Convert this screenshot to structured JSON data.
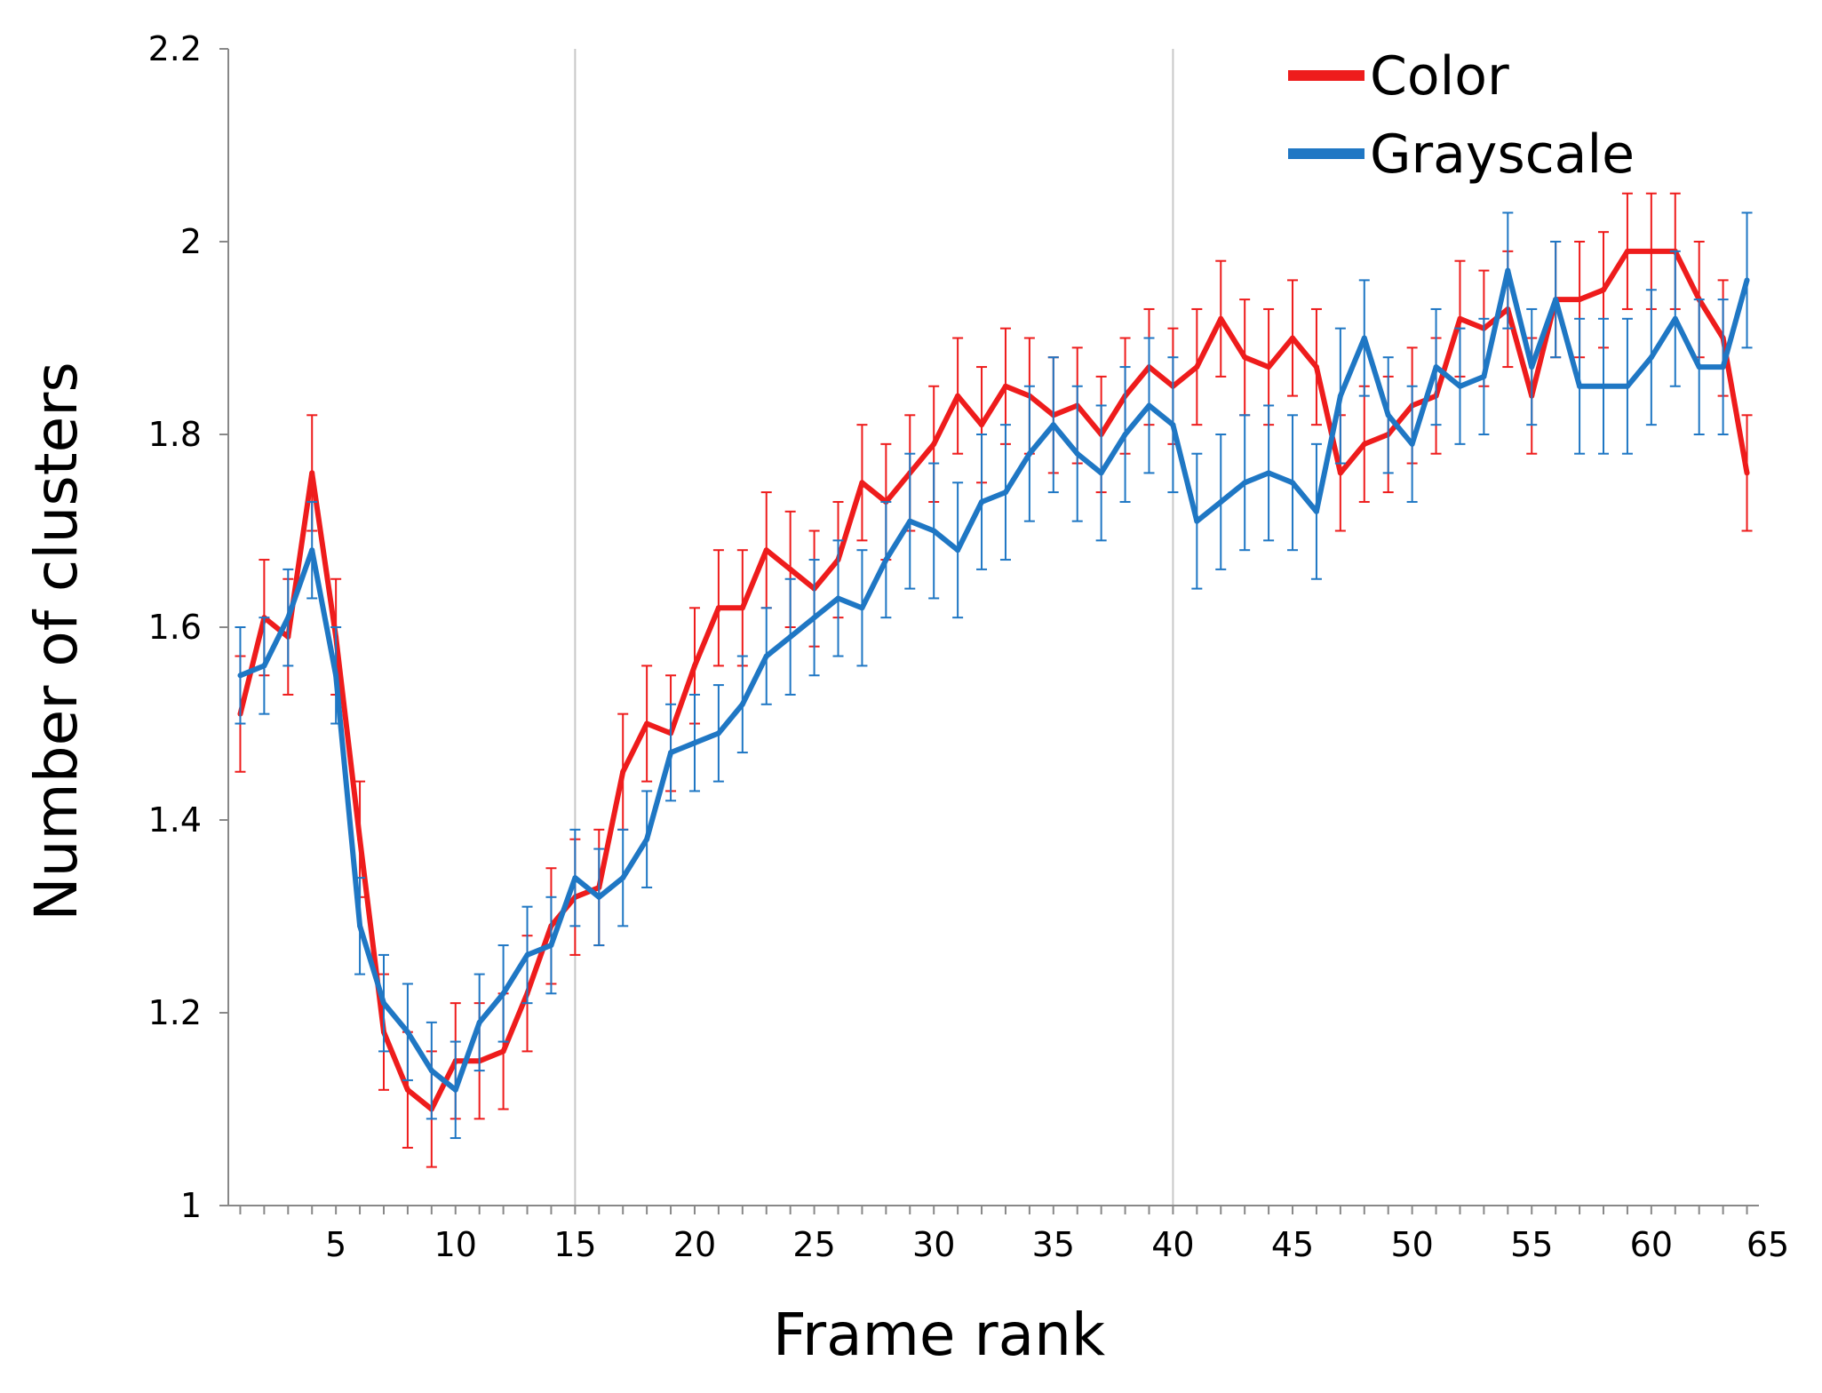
{
  "chart_data": {
    "type": "line",
    "xlabel": "Frame rank",
    "ylabel": "Number of clusters",
    "xlim": [
      0.5,
      64.5
    ],
    "ylim": [
      1,
      2.2
    ],
    "x_ticks": [
      5,
      10,
      15,
      20,
      25,
      30,
      35,
      40,
      45,
      50,
      55,
      60,
      65
    ],
    "y_ticks": [
      1,
      1.2,
      1.4,
      1.6,
      1.8,
      2,
      2.2
    ],
    "y_tick_labels": [
      "1",
      "1.2",
      "1.4",
      "1.6",
      "1.8",
      "2",
      "2.2"
    ],
    "reference_lines_x": [
      15,
      40
    ],
    "grid": false,
    "legend_position": "top-right",
    "error_bars": true,
    "x": [
      1,
      2,
      3,
      4,
      5,
      6,
      7,
      8,
      9,
      10,
      11,
      12,
      13,
      14,
      15,
      16,
      17,
      18,
      19,
      20,
      21,
      22,
      23,
      24,
      25,
      26,
      27,
      28,
      29,
      30,
      31,
      32,
      33,
      34,
      35,
      36,
      37,
      38,
      39,
      40,
      41,
      42,
      43,
      44,
      45,
      46,
      47,
      48,
      49,
      50,
      51,
      52,
      53,
      54,
      55,
      56,
      57,
      58,
      59,
      60,
      61,
      62,
      63,
      64
    ],
    "series": [
      {
        "name": "Color",
        "color": "#ee1c1c",
        "values": [
          1.51,
          1.61,
          1.59,
          1.76,
          1.59,
          1.38,
          1.18,
          1.12,
          1.1,
          1.15,
          1.15,
          1.16,
          1.22,
          1.29,
          1.32,
          1.33,
          1.45,
          1.5,
          1.49,
          1.56,
          1.62,
          1.62,
          1.68,
          1.66,
          1.64,
          1.67,
          1.75,
          1.73,
          1.76,
          1.79,
          1.84,
          1.81,
          1.85,
          1.84,
          1.82,
          1.83,
          1.8,
          1.84,
          1.87,
          1.85,
          1.87,
          1.92,
          1.88,
          1.87,
          1.9,
          1.87,
          1.76,
          1.79,
          1.8,
          1.83,
          1.84,
          1.92,
          1.91,
          1.93,
          1.84,
          1.94,
          1.94,
          1.95,
          1.99,
          1.99,
          1.99,
          1.94,
          1.9,
          1.76
        ],
        "errors": [
          0.06,
          0.06,
          0.06,
          0.06,
          0.06,
          0.06,
          0.06,
          0.06,
          0.06,
          0.06,
          0.06,
          0.06,
          0.06,
          0.06,
          0.06,
          0.06,
          0.06,
          0.06,
          0.06,
          0.06,
          0.06,
          0.06,
          0.06,
          0.06,
          0.06,
          0.06,
          0.06,
          0.06,
          0.06,
          0.06,
          0.06,
          0.06,
          0.06,
          0.06,
          0.06,
          0.06,
          0.06,
          0.06,
          0.06,
          0.06,
          0.06,
          0.06,
          0.06,
          0.06,
          0.06,
          0.06,
          0.06,
          0.06,
          0.06,
          0.06,
          0.06,
          0.06,
          0.06,
          0.06,
          0.06,
          0.06,
          0.06,
          0.06,
          0.06,
          0.06,
          0.06,
          0.06,
          0.06,
          0.06
        ]
      },
      {
        "name": "Grayscale",
        "color": "#1f77c4",
        "values": [
          1.55,
          1.56,
          1.61,
          1.68,
          1.55,
          1.29,
          1.21,
          1.18,
          1.14,
          1.12,
          1.19,
          1.22,
          1.26,
          1.27,
          1.34,
          1.32,
          1.34,
          1.38,
          1.47,
          1.48,
          1.49,
          1.52,
          1.57,
          1.59,
          1.61,
          1.63,
          1.62,
          1.67,
          1.71,
          1.7,
          1.68,
          1.73,
          1.74,
          1.78,
          1.81,
          1.78,
          1.76,
          1.8,
          1.83,
          1.81,
          1.71,
          1.73,
          1.75,
          1.76,
          1.75,
          1.72,
          1.84,
          1.9,
          1.82,
          1.79,
          1.87,
          1.85,
          1.86,
          1.97,
          1.87,
          1.94,
          1.85,
          1.85,
          1.85,
          1.88,
          1.92,
          1.87,
          1.87,
          1.96
        ],
        "errors": [
          0.05,
          0.05,
          0.05,
          0.05,
          0.05,
          0.05,
          0.05,
          0.05,
          0.05,
          0.05,
          0.05,
          0.05,
          0.05,
          0.05,
          0.05,
          0.05,
          0.05,
          0.05,
          0.05,
          0.05,
          0.05,
          0.05,
          0.05,
          0.06,
          0.06,
          0.06,
          0.06,
          0.06,
          0.07,
          0.07,
          0.07,
          0.07,
          0.07,
          0.07,
          0.07,
          0.07,
          0.07,
          0.07,
          0.07,
          0.07,
          0.07,
          0.07,
          0.07,
          0.07,
          0.07,
          0.07,
          0.07,
          0.06,
          0.06,
          0.06,
          0.06,
          0.06,
          0.06,
          0.06,
          0.06,
          0.06,
          0.07,
          0.07,
          0.07,
          0.07,
          0.07,
          0.07,
          0.07,
          0.07
        ]
      }
    ]
  }
}
